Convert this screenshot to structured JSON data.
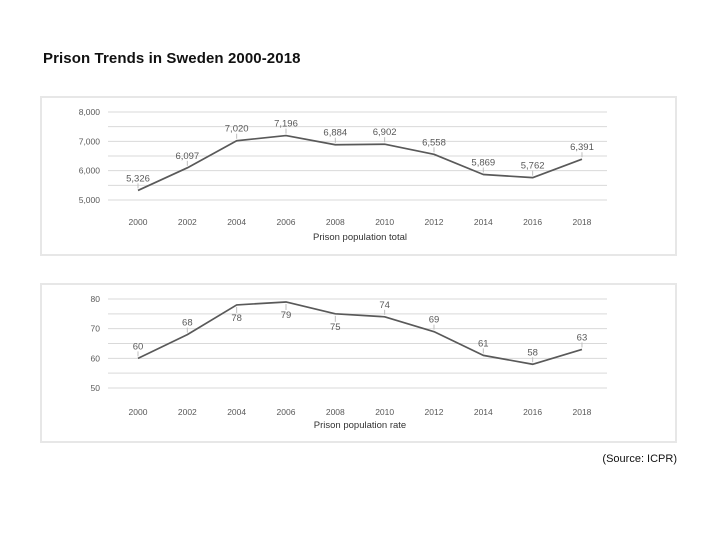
{
  "page": {
    "title": "Prison Trends in Sweden 2000-2018",
    "source_note": "(Source: ICPR)"
  },
  "colors": {
    "line": "#595959",
    "gridline": "#d9d9d9",
    "tick_text": "#595959",
    "data_label_text": "#595959",
    "caption_text": "#333333",
    "leader_tick": "#bfbfbf",
    "panel_border": "#e7e7e7"
  },
  "chart_data": [
    {
      "type": "line",
      "title": "Prison population total",
      "categories": [
        "2000",
        "2002",
        "2004",
        "2006",
        "2008",
        "2010",
        "2012",
        "2014",
        "2016",
        "2018"
      ],
      "values": [
        5326,
        6097,
        7020,
        7196,
        6884,
        6902,
        6558,
        5869,
        5762,
        6391
      ],
      "value_labels": [
        "5,326",
        "6,097",
        "7,020",
        "7,196",
        "6,884",
        "6,902",
        "6,558",
        "5,869",
        "5,762",
        "6,391"
      ],
      "label_side": [
        "above",
        "above",
        "above",
        "above",
        "above",
        "above",
        "above",
        "above",
        "above",
        "above"
      ],
      "ylim": [
        5000,
        8000
      ],
      "grid_step": 500,
      "tick_step": 1000,
      "tick_labels": [
        "5,000",
        "6,000",
        "7,000",
        "8,000"
      ],
      "grid": true,
      "legend": "none",
      "xlabel": "",
      "ylabel": ""
    },
    {
      "type": "line",
      "title": "Prison population rate",
      "categories": [
        "2000",
        "2002",
        "2004",
        "2006",
        "2008",
        "2010",
        "2012",
        "2014",
        "2016",
        "2018"
      ],
      "values": [
        60,
        68,
        78,
        79,
        75,
        74,
        69,
        61,
        58,
        63
      ],
      "value_labels": [
        "60",
        "68",
        "78",
        "79",
        "75",
        "74",
        "69",
        "61",
        "58",
        "63"
      ],
      "label_side": [
        "above",
        "above",
        "below",
        "below",
        "below",
        "above",
        "above",
        "above",
        "above",
        "above"
      ],
      "ylim": [
        50,
        80
      ],
      "grid_step": 5,
      "tick_step": 10,
      "tick_labels": [
        "50",
        "60",
        "70",
        "80"
      ],
      "grid": true,
      "legend": "none",
      "xlabel": "",
      "ylabel": ""
    }
  ]
}
